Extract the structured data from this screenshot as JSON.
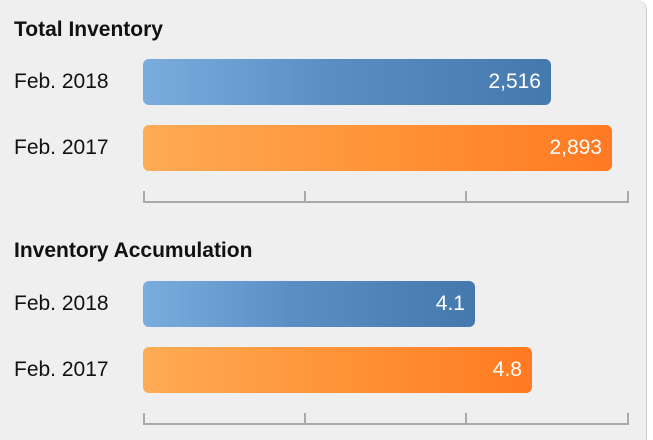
{
  "chart_data": [
    {
      "type": "bar",
      "orientation": "horizontal",
      "title": "Total Inventory",
      "categories": [
        "Feb. 2018",
        "Feb. 2017"
      ],
      "values": [
        2516,
        2893
      ],
      "value_labels": [
        "2,516",
        "2,893"
      ],
      "series_colors": [
        "#5b8fc4",
        "#ff8c30"
      ],
      "xlim": [
        0,
        3000
      ],
      "grid": false,
      "legend": "none"
    },
    {
      "type": "bar",
      "orientation": "horizontal",
      "title": "Inventory Accumulation",
      "categories": [
        "Feb. 2018",
        "Feb. 2017"
      ],
      "values": [
        4.1,
        4.8
      ],
      "value_labels": [
        "4.1",
        "4.8"
      ],
      "series_colors": [
        "#5b8fc4",
        "#ff8c30"
      ],
      "xlim": [
        0,
        6
      ],
      "grid": false,
      "legend": "none"
    }
  ]
}
